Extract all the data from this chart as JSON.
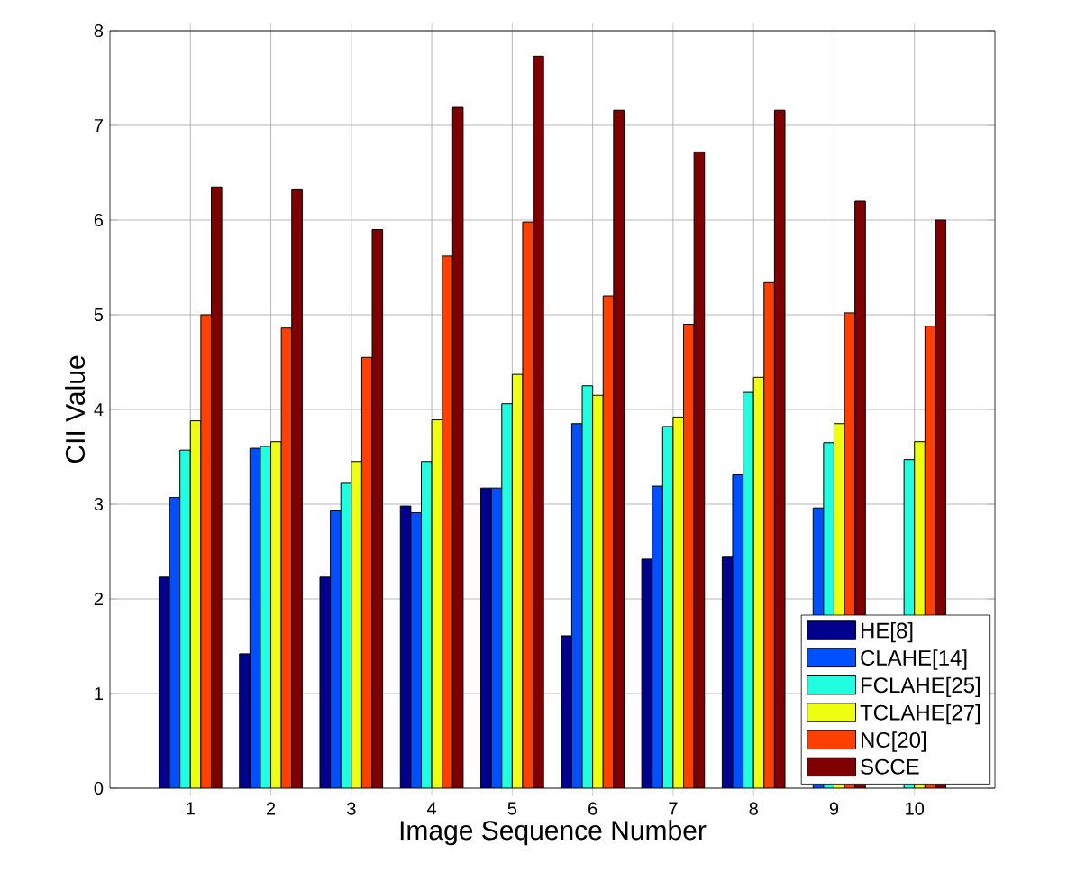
{
  "chart_data": {
    "type": "bar",
    "xlabel": "Image Sequence Number",
    "ylabel": "CII Value",
    "categories": [
      "1",
      "2",
      "3",
      "4",
      "5",
      "6",
      "7",
      "8",
      "9",
      "10"
    ],
    "series": [
      {
        "name": "HE[8]",
        "color": "#00008f",
        "values": [
          2.23,
          1.42,
          2.23,
          2.98,
          3.17,
          1.61,
          2.42,
          2.44,
          null,
          null
        ]
      },
      {
        "name": "CLAHE[14]",
        "color": "#0050ff",
        "values": [
          3.07,
          3.59,
          2.93,
          2.91,
          3.17,
          3.85,
          3.19,
          3.31,
          2.96,
          null
        ]
      },
      {
        "name": "FCLAHE[25]",
        "color": "#20ffdf",
        "values": [
          3.57,
          3.61,
          3.22,
          3.45,
          4.06,
          4.25,
          3.82,
          4.18,
          3.65,
          3.47
        ]
      },
      {
        "name": "TCLAHE[27]",
        "color": "#efff10",
        "values": [
          3.88,
          3.66,
          3.45,
          3.89,
          4.37,
          4.15,
          3.92,
          4.34,
          3.85,
          3.66
        ]
      },
      {
        "name": "NC[20]",
        "color": "#ff4000",
        "values": [
          5.0,
          4.86,
          4.55,
          5.62,
          5.98,
          5.2,
          4.9,
          5.34,
          5.02,
          4.88
        ]
      },
      {
        "name": "SCCE",
        "color": "#7f0000",
        "values": [
          6.35,
          6.32,
          5.9,
          7.19,
          7.73,
          7.16,
          6.72,
          7.16,
          6.2,
          6.0
        ]
      }
    ],
    "ylim": [
      0,
      8
    ],
    "yticks": [
      0,
      1,
      2,
      3,
      4,
      5,
      6,
      7,
      8
    ],
    "grid": true,
    "legend": "bottom right"
  }
}
